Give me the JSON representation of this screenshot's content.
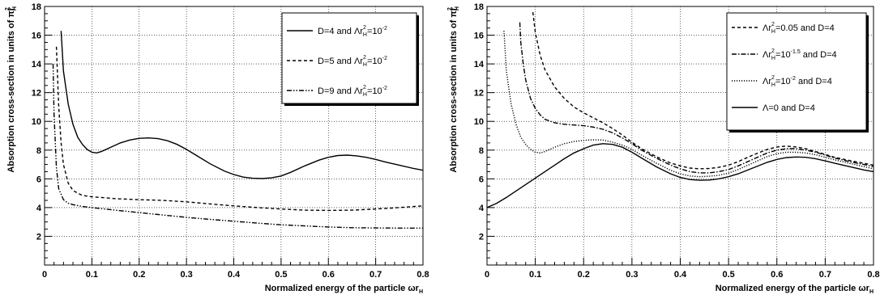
{
  "chart_data": [
    {
      "type": "line",
      "xlabel": "Normalized energy of the particle",
      "xlabel_symbol": "ωr",
      "xlabel_sub": "H",
      "ylabel": "Absorption cross-section in units of",
      "ylabel_symbol": "πr",
      "ylabel_sub": "H",
      "ylabel_sup": "2",
      "xlim": [
        0,
        0.8
      ],
      "ylim": [
        0,
        18
      ],
      "xticks": [
        0,
        0.1,
        0.2,
        0.3,
        0.4,
        0.5,
        0.6,
        0.7,
        0.8
      ],
      "xtick_labels": [
        "0",
        "0.1",
        "0.2",
        "0.3",
        "0.4",
        "0.5",
        "0.6",
        "0.7",
        "0.8"
      ],
      "yticks": [
        2,
        4,
        6,
        8,
        10,
        12,
        14,
        16,
        18
      ],
      "ytick_labels": [
        "2",
        "4",
        "6",
        "8",
        "10",
        "12",
        "14",
        "16",
        "18"
      ],
      "grid": true,
      "legend_position": "top-right",
      "series": [
        {
          "legend": {
            "pre": "D=4 and Λr",
            "sub": "H",
            "sup": "2",
            "mid": "=10",
            "exp": "-2",
            "post": ""
          },
          "dash": "",
          "x": [
            0.035,
            0.04,
            0.05,
            0.06,
            0.07,
            0.08,
            0.09,
            0.1,
            0.11,
            0.12,
            0.14,
            0.16,
            0.18,
            0.2,
            0.22,
            0.24,
            0.26,
            0.28,
            0.3,
            0.32,
            0.35,
            0.38,
            0.4,
            0.42,
            0.44,
            0.46,
            0.48,
            0.5,
            0.52,
            0.55,
            0.58,
            0.6,
            0.62,
            0.64,
            0.66,
            0.68,
            0.7,
            0.72,
            0.75,
            0.78,
            0.8
          ],
          "y": [
            16.3,
            13.5,
            11.2,
            9.8,
            8.9,
            8.4,
            8.05,
            7.85,
            7.8,
            7.9,
            8.2,
            8.5,
            8.7,
            8.82,
            8.85,
            8.8,
            8.65,
            8.4,
            8.05,
            7.65,
            7.05,
            6.55,
            6.3,
            6.12,
            6.04,
            6.02,
            6.07,
            6.2,
            6.45,
            6.9,
            7.3,
            7.5,
            7.62,
            7.65,
            7.6,
            7.5,
            7.35,
            7.18,
            6.95,
            6.72,
            6.6
          ]
        },
        {
          "legend": {
            "pre": "D=5 and Λr",
            "sub": "H",
            "sup": "2",
            "mid": "=10",
            "exp": "-2",
            "post": ""
          },
          "dash": "4,3",
          "x": [
            0.025,
            0.03,
            0.035,
            0.04,
            0.05,
            0.06,
            0.07,
            0.08,
            0.1,
            0.12,
            0.15,
            0.2,
            0.25,
            0.3,
            0.35,
            0.4,
            0.45,
            0.5,
            0.55,
            0.6,
            0.65,
            0.7,
            0.75,
            0.8
          ],
          "y": [
            15.2,
            11.0,
            8.5,
            7.0,
            5.7,
            5.2,
            5.0,
            4.85,
            4.75,
            4.7,
            4.62,
            4.55,
            4.5,
            4.4,
            4.25,
            4.12,
            4.0,
            3.9,
            3.82,
            3.8,
            3.82,
            3.9,
            4.0,
            4.12
          ]
        },
        {
          "legend": {
            "pre": "D=9 and Λr",
            "sub": "H",
            "sup": "2",
            "mid": "=10",
            "exp": "-2",
            "post": ""
          },
          "dash": "6,2,1.5,2,1.5,2",
          "x": [
            0.018,
            0.02,
            0.025,
            0.03,
            0.04,
            0.05,
            0.06,
            0.08,
            0.1,
            0.15,
            0.2,
            0.25,
            0.3,
            0.35,
            0.4,
            0.45,
            0.5,
            0.55,
            0.6,
            0.65,
            0.7,
            0.75,
            0.8
          ],
          "y": [
            14.0,
            10.5,
            6.8,
            5.3,
            4.55,
            4.3,
            4.2,
            4.08,
            4.0,
            3.82,
            3.65,
            3.48,
            3.32,
            3.18,
            3.05,
            2.92,
            2.8,
            2.72,
            2.65,
            2.6,
            2.58,
            2.57,
            2.57
          ]
        }
      ]
    },
    {
      "type": "line",
      "xlabel": "Normalized energy of the particle",
      "xlabel_symbol": "ωr",
      "xlabel_sub": "H",
      "ylabel": "Absorption cross-section in units of",
      "ylabel_symbol": "πr",
      "ylabel_sub": "H",
      "ylabel_sup": "2",
      "xlim": [
        0,
        0.8
      ],
      "ylim": [
        0,
        18
      ],
      "xticks": [
        0,
        0.1,
        0.2,
        0.3,
        0.4,
        0.5,
        0.6,
        0.7,
        0.8
      ],
      "xtick_labels": [
        "0",
        "0.1",
        "0.2",
        "0.3",
        "0.4",
        "0.5",
        "0.6",
        "0.7",
        "0.8"
      ],
      "yticks": [
        2,
        4,
        6,
        8,
        10,
        12,
        14,
        16,
        18
      ],
      "ytick_labels": [
        "2",
        "4",
        "6",
        "8",
        "10",
        "12",
        "14",
        "16",
        "18"
      ],
      "grid": true,
      "legend_position": "top-right",
      "series": [
        {
          "legend": {
            "pre": "Λr",
            "sub": "H",
            "sup": "2",
            "mid": "=0.05 and D=4",
            "exp": "",
            "post": ""
          },
          "dash": "4,3",
          "x": [
            0.095,
            0.1,
            0.11,
            0.12,
            0.14,
            0.16,
            0.18,
            0.2,
            0.22,
            0.24,
            0.26,
            0.28,
            0.3,
            0.32,
            0.35,
            0.38,
            0.4,
            0.42,
            0.44,
            0.46,
            0.48,
            0.5,
            0.52,
            0.55,
            0.58,
            0.6,
            0.62,
            0.64,
            0.66,
            0.68,
            0.7,
            0.72,
            0.75,
            0.78,
            0.8
          ],
          "y": [
            17.6,
            16.2,
            14.6,
            13.6,
            12.4,
            11.6,
            11.0,
            10.6,
            10.25,
            9.9,
            9.5,
            9.05,
            8.55,
            8.1,
            7.55,
            7.1,
            6.9,
            6.75,
            6.7,
            6.72,
            6.8,
            6.95,
            7.2,
            7.65,
            8.05,
            8.22,
            8.28,
            8.22,
            8.1,
            7.9,
            7.7,
            7.5,
            7.28,
            7.08,
            6.95
          ]
        },
        {
          "legend": {
            "pre": "Λr",
            "sub": "H",
            "sup": "2",
            "mid": "=10",
            "exp": "-1.5",
            "post": " and D=4"
          },
          "dash": "6,2,1.5,2",
          "x": [
            0.068,
            0.07,
            0.075,
            0.08,
            0.09,
            0.1,
            0.11,
            0.12,
            0.14,
            0.16,
            0.18,
            0.2,
            0.22,
            0.24,
            0.26,
            0.28,
            0.3,
            0.32,
            0.35,
            0.38,
            0.4,
            0.42,
            0.44,
            0.46,
            0.48,
            0.5,
            0.52,
            0.55,
            0.58,
            0.6,
            0.62,
            0.64,
            0.66,
            0.68,
            0.7,
            0.72,
            0.75,
            0.78,
            0.8
          ],
          "y": [
            16.9,
            15.5,
            14.0,
            12.9,
            11.6,
            10.9,
            10.45,
            10.15,
            9.9,
            9.8,
            9.75,
            9.7,
            9.6,
            9.45,
            9.2,
            8.85,
            8.45,
            8.0,
            7.45,
            6.95,
            6.7,
            6.5,
            6.42,
            6.42,
            6.5,
            6.65,
            6.9,
            7.35,
            7.8,
            8.0,
            8.1,
            8.1,
            8.0,
            7.85,
            7.65,
            7.45,
            7.2,
            7.0,
            6.85
          ]
        },
        {
          "legend": {
            "pre": "Λr",
            "sub": "H",
            "sup": "2",
            "mid": "=10",
            "exp": "-2",
            "post": " and D=4"
          },
          "dash": "1.2,1.8",
          "x": [
            0.035,
            0.04,
            0.05,
            0.06,
            0.07,
            0.08,
            0.09,
            0.1,
            0.11,
            0.12,
            0.14,
            0.16,
            0.18,
            0.2,
            0.22,
            0.24,
            0.26,
            0.28,
            0.3,
            0.32,
            0.35,
            0.38,
            0.4,
            0.42,
            0.44,
            0.46,
            0.48,
            0.5,
            0.52,
            0.55,
            0.58,
            0.6,
            0.62,
            0.64,
            0.66,
            0.68,
            0.7,
            0.72,
            0.75,
            0.78,
            0.8
          ],
          "y": [
            16.3,
            13.5,
            11.2,
            9.8,
            8.9,
            8.4,
            8.05,
            7.85,
            7.8,
            7.9,
            8.2,
            8.45,
            8.6,
            8.68,
            8.72,
            8.7,
            8.55,
            8.35,
            8.05,
            7.65,
            7.1,
            6.6,
            6.35,
            6.2,
            6.15,
            6.18,
            6.25,
            6.4,
            6.65,
            7.1,
            7.55,
            7.75,
            7.85,
            7.85,
            7.8,
            7.68,
            7.5,
            7.32,
            7.08,
            6.85,
            6.7
          ]
        },
        {
          "legend": {
            "pre": "Λ=0 and D=4",
            "sub": "",
            "sup": "",
            "mid": "",
            "exp": "",
            "post": ""
          },
          "dash": "",
          "x": [
            0.0,
            0.02,
            0.04,
            0.06,
            0.08,
            0.1,
            0.12,
            0.14,
            0.16,
            0.18,
            0.2,
            0.22,
            0.24,
            0.26,
            0.28,
            0.3,
            0.32,
            0.35,
            0.38,
            0.4,
            0.42,
            0.44,
            0.46,
            0.48,
            0.5,
            0.52,
            0.55,
            0.58,
            0.6,
            0.62,
            0.64,
            0.66,
            0.68,
            0.7,
            0.72,
            0.75,
            0.78,
            0.8
          ],
          "y": [
            4.0,
            4.3,
            4.7,
            5.15,
            5.6,
            6.05,
            6.5,
            6.95,
            7.4,
            7.8,
            8.1,
            8.35,
            8.45,
            8.4,
            8.2,
            7.85,
            7.45,
            6.85,
            6.35,
            6.1,
            5.95,
            5.9,
            5.92,
            6.0,
            6.15,
            6.35,
            6.75,
            7.15,
            7.35,
            7.48,
            7.52,
            7.5,
            7.4,
            7.25,
            7.08,
            6.85,
            6.62,
            6.5
          ]
        }
      ]
    }
  ]
}
